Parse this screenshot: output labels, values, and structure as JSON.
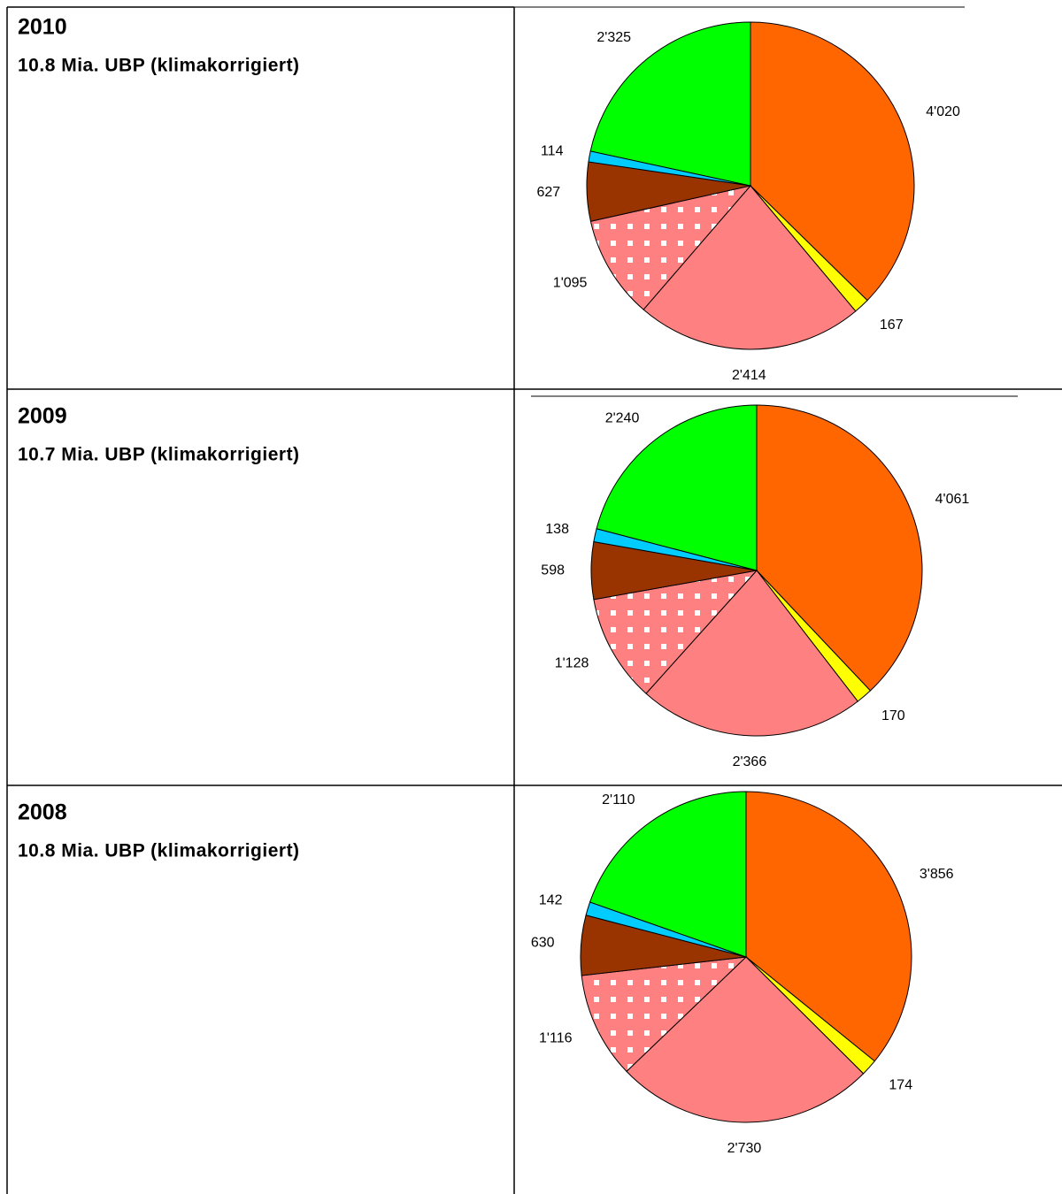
{
  "chart_data": [
    {
      "type": "pie",
      "title": "2010",
      "subtitle": "10.8 Mia. UBP (klimakorrigiert)",
      "values": [
        4020,
        167,
        2414,
        1095,
        627,
        114,
        2325
      ],
      "value_labels": [
        "4'020",
        "167",
        "2'414",
        "1'095",
        "627",
        "114",
        "2'325"
      ],
      "colors": [
        "#ff6600",
        "#ffff00",
        "#ff8080",
        "#ff8080",
        "#993300",
        "#00ccff",
        "#00ff00"
      ],
      "patterns": [
        null,
        null,
        null,
        "dots",
        null,
        null,
        null
      ]
    },
    {
      "type": "pie",
      "title": "2009",
      "subtitle": "10.7 Mia. UBP (klimakorrigiert)",
      "values": [
        4061,
        170,
        2366,
        1128,
        598,
        138,
        2240
      ],
      "value_labels": [
        "4'061",
        "170",
        "2'366",
        "1'128",
        "598",
        "138",
        "2'240"
      ],
      "colors": [
        "#ff6600",
        "#ffff00",
        "#ff8080",
        "#ff8080",
        "#993300",
        "#00ccff",
        "#00ff00"
      ],
      "patterns": [
        null,
        null,
        null,
        "dots",
        null,
        null,
        null
      ]
    },
    {
      "type": "pie",
      "title": "2008",
      "subtitle": "10.8 Mia. UBP (klimakorrigiert)",
      "values": [
        3856,
        174,
        2730,
        1116,
        630,
        142,
        2110
      ],
      "value_labels": [
        "3'856",
        "174",
        "2'730",
        "1'116",
        "630",
        "142",
        "2'110"
      ],
      "colors": [
        "#ff6600",
        "#ffff00",
        "#ff8080",
        "#ff8080",
        "#993300",
        "#00ccff",
        "#00ff00"
      ],
      "patterns": [
        null,
        null,
        null,
        "dots",
        null,
        null,
        null
      ]
    }
  ]
}
